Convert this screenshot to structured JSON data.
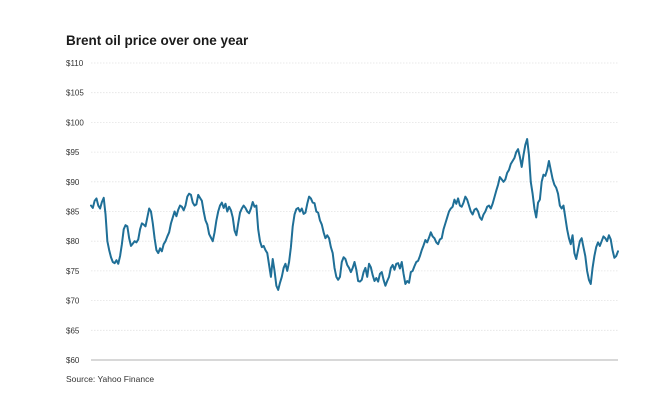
{
  "chart_data": {
    "type": "line",
    "title": "Brent oil price over one year",
    "source": "Source: Yahoo Finance",
    "xlabel": "",
    "ylabel": "",
    "ylim": [
      60,
      110
    ],
    "yticks": [
      110,
      105,
      100,
      95,
      90,
      85,
      80,
      75,
      70,
      65,
      60
    ],
    "ytick_labels": [
      "$110",
      "$105",
      "$100",
      "$95",
      "$90",
      "$85",
      "$80",
      "$75",
      "$70",
      "$65",
      "$60"
    ],
    "grid": true,
    "line_color": "#1f6f97",
    "series": [
      {
        "values": [
          86.0,
          85.6,
          86.8,
          87.2,
          86.0,
          85.5,
          86.6,
          87.3,
          84.5,
          80.0,
          78.5,
          77.3,
          76.5,
          76.3,
          76.8,
          76.2,
          77.5,
          79.5,
          82.0,
          82.7,
          82.5,
          80.5,
          79.2,
          79.6,
          80.0,
          79.8,
          80.3,
          82.0,
          83.0,
          82.8,
          82.5,
          84.0,
          85.5,
          85.0,
          83.0,
          80.5,
          78.5,
          78.0,
          78.8,
          78.3,
          79.5,
          80.0,
          80.8,
          81.5,
          83.0,
          84.0,
          85.0,
          84.2,
          85.3,
          86.0,
          85.8,
          85.2,
          86.0,
          87.5,
          88.0,
          87.8,
          86.5,
          86.0,
          86.2,
          87.8,
          87.3,
          86.8,
          85.0,
          83.5,
          82.8,
          81.2,
          80.6,
          80.0,
          81.5,
          83.5,
          85.0,
          86.0,
          86.5,
          85.6,
          86.3,
          85.0,
          85.8,
          85.2,
          84.0,
          81.8,
          81.0,
          83.0,
          84.8,
          85.5,
          86.0,
          85.6,
          85.0,
          84.7,
          85.5,
          86.6,
          85.8,
          86.0,
          82.0,
          80.0,
          79.0,
          79.2,
          78.5,
          78.0,
          76.0,
          74.0,
          77.0,
          75.0,
          72.5,
          71.8,
          73.0,
          74.0,
          75.5,
          76.2,
          75.0,
          76.5,
          79.0,
          82.5,
          84.5,
          85.4,
          85.6,
          85.0,
          85.5,
          84.6,
          84.8,
          86.3,
          87.5,
          87.2,
          86.5,
          86.4,
          85.0,
          84.8,
          83.5,
          82.8,
          81.5,
          80.5,
          81.0,
          80.5,
          79.0,
          78.0,
          75.5,
          74.0,
          73.5,
          74.0,
          76.5,
          77.3,
          77.0,
          76.0,
          75.5,
          74.8,
          75.5,
          76.5,
          75.2,
          73.3,
          73.2,
          73.5,
          74.8,
          75.5,
          74.0,
          76.2,
          75.6,
          74.3,
          73.3,
          73.8,
          73.2,
          74.5,
          74.8,
          73.5,
          72.5,
          73.3,
          74.0,
          75.5,
          76.0,
          75.2,
          76.2,
          76.3,
          75.4,
          76.5,
          74.5,
          72.8,
          73.3,
          73.0,
          74.8,
          75.0,
          75.8,
          76.5,
          76.7,
          77.5,
          78.5,
          79.3,
          80.2,
          79.8,
          80.6,
          81.5,
          80.8,
          80.5,
          79.8,
          79.5,
          80.3,
          80.5,
          82.0,
          83.0,
          84.0,
          85.0,
          85.5,
          85.8,
          87.0,
          86.3,
          87.2,
          86.0,
          85.8,
          86.5,
          87.5,
          87.0,
          86.0,
          85.0,
          84.5,
          85.3,
          85.5,
          85.0,
          84.0,
          83.6,
          84.5,
          85.0,
          85.8,
          86.0,
          85.5,
          86.3,
          87.4,
          88.5,
          89.5,
          90.8,
          90.4,
          90.0,
          90.4,
          91.5,
          92.0,
          93.0,
          93.5,
          94.0,
          95.0,
          95.5,
          94.2,
          92.5,
          94.5,
          96.2,
          97.2,
          94.5,
          90.0,
          88.0,
          85.5,
          84.0,
          86.5,
          87.0,
          90.0,
          91.2,
          91.0,
          92.0,
          93.5,
          92.0,
          90.5,
          89.5,
          89.0,
          88.0,
          86.0,
          85.5,
          86.0,
          84.0,
          82.0,
          80.5,
          79.5,
          81.0,
          78.0,
          77.0,
          78.5,
          80.0,
          80.5,
          79.0,
          77.5,
          75.0,
          73.5,
          72.8,
          75.5,
          77.5,
          79.0,
          79.8,
          79.2,
          80.0,
          80.8,
          80.5,
          80.0,
          81.0,
          80.3,
          78.5,
          77.2,
          77.5,
          78.3
        ]
      }
    ]
  }
}
